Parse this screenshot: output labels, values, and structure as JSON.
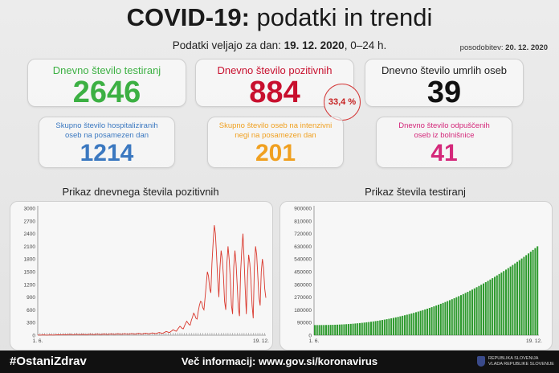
{
  "header": {
    "title_bold": "COVID-19:",
    "title_rest": " podatki in trendi",
    "valid_prefix": "Podatki veljajo za dan: ",
    "valid_date": "19. 12. 2020",
    "valid_suffix": ", 0–24 h.",
    "updated_label": "posodobitev: ",
    "updated_date": "20. 12. 2020"
  },
  "cards": {
    "tested": {
      "label": "Dnevno število testiranj",
      "value": "2646",
      "color": "#3cb043"
    },
    "positive": {
      "label": "Dnevno število pozitivnih",
      "value": "884",
      "color": "#c8102e",
      "percent": "33,4 %"
    },
    "deaths": {
      "label": "Dnevno število umrlih oseb",
      "value": "39",
      "color": "#111111"
    },
    "hospitalized": {
      "label_line1": "Skupno število hospitaliziranih",
      "label_line2": "oseb na posamezen dan",
      "value": "1214",
      "color": "#3b78c0"
    },
    "icu": {
      "label_line1": "Skupno število oseb na intenzivni",
      "label_line2": "negi na posamezen dan",
      "value": "201",
      "color": "#f0a020"
    },
    "discharged": {
      "label_line1": "Dnevno število odpuščenih",
      "label_line2": "oseb iz bolnišnice",
      "value": "41",
      "color": "#d4287a"
    }
  },
  "chart_data": [
    {
      "type": "line",
      "title": "Prikaz dnevnega števila pozitivnih",
      "x_start": "1. 6.",
      "x_end": "19. 12.",
      "ylim": [
        0,
        3000
      ],
      "y_ticks": [
        "3000",
        "2700",
        "2400",
        "2100",
        "1800",
        "1500",
        "1200",
        "900",
        "600",
        "300",
        "0"
      ],
      "color": "#d9362b",
      "grid": false,
      "values": [
        5,
        3,
        2,
        4,
        6,
        8,
        5,
        3,
        2,
        4,
        5,
        7,
        6,
        4,
        3,
        5,
        8,
        10,
        12,
        9,
        7,
        11,
        14,
        16,
        12,
        10,
        15,
        18,
        20,
        17,
        14,
        12,
        16,
        20,
        22,
        18,
        15,
        13,
        17,
        21,
        19,
        16,
        14,
        12,
        18,
        22,
        25,
        20,
        17,
        15,
        19,
        23,
        26,
        22,
        18,
        16,
        20,
        24,
        28,
        25,
        21,
        18,
        22,
        27,
        30,
        26,
        23,
        20,
        25,
        30,
        34,
        29,
        25,
        22,
        27,
        32,
        36,
        31,
        27,
        24,
        30,
        35,
        40,
        34,
        30,
        27,
        33,
        38,
        44,
        38,
        33,
        30,
        36,
        42,
        48,
        42,
        37,
        33,
        40,
        47,
        55,
        48,
        42,
        38,
        46,
        55,
        65,
        56,
        49,
        44,
        58,
        72,
        90,
        80,
        70,
        62,
        85,
        105,
        130,
        115,
        100,
        95,
        140,
        175,
        210,
        190,
        160,
        150,
        220,
        280,
        330,
        290,
        250,
        240,
        350,
        430,
        520,
        480,
        400,
        380,
        560,
        700,
        800,
        780,
        650,
        600,
        900,
        1200,
        1500,
        1400,
        1100,
        1000,
        1700,
        2200,
        2600,
        2400,
        1900,
        1300,
        900,
        1600,
        2000,
        1800,
        1400,
        800,
        600,
        1700,
        2100,
        1800,
        1300,
        700,
        500,
        1600,
        2000,
        1700,
        1200,
        650,
        450,
        1500,
        2000,
        2400,
        1800,
        1100,
        500,
        1400,
        1900,
        1700,
        1300,
        700,
        400,
        1600,
        2100,
        1900,
        1400,
        900,
        700,
        1500,
        1800,
        1600,
        1100,
        884
      ]
    },
    {
      "type": "bar",
      "title": "Prikaz števila testiranj",
      "x_start": "1. 6.",
      "x_end": "19. 12.",
      "ylim": [
        0,
        900000
      ],
      "y_ticks": [
        "900000",
        "810000",
        "720000",
        "630000",
        "540000",
        "450000",
        "360000",
        "270000",
        "180000",
        "90000",
        "0"
      ],
      "color": "#2e9a2e",
      "grid": false,
      "cumulative_start": 72000,
      "cumulative_end": 630000
    }
  ],
  "footer": {
    "hashtag": "#OstaniZdrav",
    "more_info": "Več informacij: www.gov.si/koronavirus",
    "gov_line1": "REPUBLIKA SLOVENIJA",
    "gov_line2": "VLADA REPUBLIKE SLOVENIJE"
  }
}
